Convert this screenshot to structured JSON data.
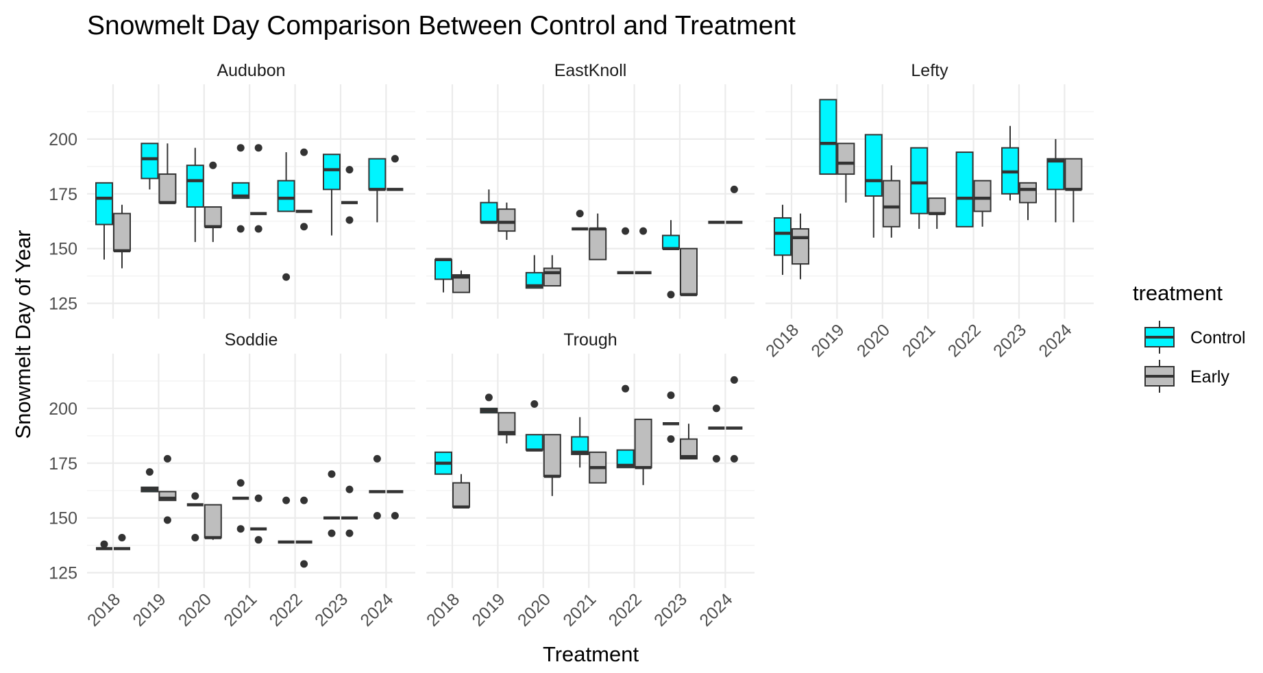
{
  "chart_data": {
    "type": "boxplot",
    "title": "Snowmelt Day Comparison Between Control and Treatment",
    "xlabel": "Treatment",
    "ylabel": "Snowmelt Day of Year",
    "ylim": [
      118,
      225
    ],
    "yticks": [
      125,
      150,
      175,
      200
    ],
    "categories": [
      "2018",
      "2019",
      "2020",
      "2021",
      "2022",
      "2023",
      "2024"
    ],
    "legend": {
      "title": "treatment",
      "position": "right",
      "entries": [
        {
          "name": "Control",
          "color": "#00f5ff"
        },
        {
          "name": "Early",
          "color": "#bebebe"
        }
      ]
    },
    "grid": true,
    "panels": [
      {
        "name": "Audubon",
        "series": [
          {
            "name": "Control",
            "boxes": [
              {
                "x": "2018",
                "min": 145,
                "q1": 161,
                "median": 173,
                "q3": 180,
                "max": 180,
                "outliers": []
              },
              {
                "x": "2019",
                "min": 177,
                "q1": 182,
                "median": 191,
                "q3": 198,
                "max": 198,
                "outliers": []
              },
              {
                "x": "2020",
                "min": 153,
                "q1": 169,
                "median": 181,
                "q3": 188,
                "max": 196,
                "outliers": []
              },
              {
                "x": "2021",
                "min": 173,
                "q1": 173,
                "median": 174,
                "q3": 180,
                "max": 180,
                "outliers": [
                  159,
                  196
                ]
              },
              {
                "x": "2022",
                "min": 167,
                "q1": 167,
                "median": 173,
                "q3": 181,
                "max": 194,
                "outliers": [
                  137
                ]
              },
              {
                "x": "2023",
                "min": 156,
                "q1": 177,
                "median": 186,
                "q3": 193,
                "max": 193,
                "outliers": []
              },
              {
                "x": "2024",
                "min": 162,
                "q1": 177,
                "median": 177,
                "q3": 191,
                "max": 191,
                "outliers": []
              }
            ]
          },
          {
            "name": "Early",
            "boxes": [
              {
                "x": "2018",
                "min": 141,
                "q1": 149,
                "median": 149,
                "q3": 166,
                "max": 170,
                "outliers": []
              },
              {
                "x": "2019",
                "min": 171,
                "q1": 171,
                "median": 171,
                "q3": 184,
                "max": 198,
                "outliers": []
              },
              {
                "x": "2020",
                "min": 153,
                "q1": 160,
                "median": 160,
                "q3": 169,
                "max": 169,
                "outliers": [
                  188
                ]
              },
              {
                "x": "2021",
                "min": 166,
                "q1": 166,
                "median": 166,
                "q3": 166,
                "max": 166,
                "outliers": [
                  159,
                  196
                ]
              },
              {
                "x": "2022",
                "min": 167,
                "q1": 167,
                "median": 167,
                "q3": 167,
                "max": 167,
                "outliers": [
                  160,
                  194
                ]
              },
              {
                "x": "2023",
                "min": 171,
                "q1": 171,
                "median": 171,
                "q3": 171,
                "max": 171,
                "outliers": [
                  163,
                  186
                ]
              },
              {
                "x": "2024",
                "min": 177,
                "q1": 177,
                "median": 177,
                "q3": 177,
                "max": 177,
                "outliers": [
                  191
                ]
              }
            ]
          }
        ]
      },
      {
        "name": "EastKnoll",
        "series": [
          {
            "name": "Control",
            "boxes": [
              {
                "x": "2018",
                "min": 130,
                "q1": 136,
                "median": 145,
                "q3": 145,
                "max": 145,
                "outliers": []
              },
              {
                "x": "2019",
                "min": 162,
                "q1": 162,
                "median": 162,
                "q3": 171,
                "max": 177,
                "outliers": []
              },
              {
                "x": "2020",
                "min": 132,
                "q1": 132,
                "median": 133,
                "q3": 139,
                "max": 147,
                "outliers": []
              },
              {
                "x": "2021",
                "min": 159,
                "q1": 159,
                "median": 159,
                "q3": 159,
                "max": 159,
                "outliers": [
                  166
                ]
              },
              {
                "x": "2022",
                "min": 139,
                "q1": 139,
                "median": 139,
                "q3": 139,
                "max": 139,
                "outliers": [
                  158
                ]
              },
              {
                "x": "2023",
                "min": 150,
                "q1": 150,
                "median": 150,
                "q3": 156,
                "max": 163,
                "outliers": [
                  129
                ]
              },
              {
                "x": "2024",
                "min": 162,
                "q1": 162,
                "median": 162,
                "q3": 162,
                "max": 162,
                "outliers": []
              }
            ]
          },
          {
            "name": "Early",
            "boxes": [
              {
                "x": "2018",
                "min": 130,
                "q1": 130,
                "median": 137,
                "q3": 138,
                "max": 140,
                "outliers": []
              },
              {
                "x": "2019",
                "min": 154,
                "q1": 158,
                "median": 162,
                "q3": 168,
                "max": 171,
                "outliers": []
              },
              {
                "x": "2020",
                "min": 133,
                "q1": 133,
                "median": 139,
                "q3": 141,
                "max": 147,
                "outliers": []
              },
              {
                "x": "2021",
                "min": 145,
                "q1": 145,
                "median": 159,
                "q3": 159,
                "max": 166,
                "outliers": []
              },
              {
                "x": "2022",
                "min": 139,
                "q1": 139,
                "median": 139,
                "q3": 139,
                "max": 139,
                "outliers": [
                  158
                ]
              },
              {
                "x": "2023",
                "min": 129,
                "q1": 129,
                "median": 129,
                "q3": 150,
                "max": 150,
                "outliers": []
              },
              {
                "x": "2024",
                "min": 162,
                "q1": 162,
                "median": 162,
                "q3": 162,
                "max": 162,
                "outliers": [
                  177
                ]
              }
            ]
          }
        ]
      },
      {
        "name": "Lefty",
        "series": [
          {
            "name": "Control",
            "boxes": [
              {
                "x": "2018",
                "min": 138,
                "q1": 147,
                "median": 157,
                "q3": 164,
                "max": 170,
                "outliers": []
              },
              {
                "x": "2019",
                "min": 184,
                "q1": 184,
                "median": 198,
                "q3": 218,
                "max": 218,
                "outliers": []
              },
              {
                "x": "2020",
                "min": 155,
                "q1": 174,
                "median": 181,
                "q3": 202,
                "max": 202,
                "outliers": []
              },
              {
                "x": "2021",
                "min": 159,
                "q1": 166,
                "median": 180,
                "q3": 196,
                "max": 196,
                "outliers": []
              },
              {
                "x": "2022",
                "min": 160,
                "q1": 160,
                "median": 173,
                "q3": 194,
                "max": 194,
                "outliers": []
              },
              {
                "x": "2023",
                "min": 172,
                "q1": 175,
                "median": 185,
                "q3": 196,
                "max": 206,
                "outliers": []
              },
              {
                "x": "2024",
                "min": 162,
                "q1": 177,
                "median": 190,
                "q3": 191,
                "max": 200,
                "outliers": []
              }
            ]
          },
          {
            "name": "Early",
            "boxes": [
              {
                "x": "2018",
                "min": 136,
                "q1": 143,
                "median": 155,
                "q3": 159,
                "max": 166,
                "outliers": []
              },
              {
                "x": "2019",
                "min": 171,
                "q1": 184,
                "median": 189,
                "q3": 198,
                "max": 198,
                "outliers": []
              },
              {
                "x": "2020",
                "min": 155,
                "q1": 160,
                "median": 169,
                "q3": 181,
                "max": 188,
                "outliers": []
              },
              {
                "x": "2021",
                "min": 159,
                "q1": 166,
                "median": 166,
                "q3": 173,
                "max": 173,
                "outliers": []
              },
              {
                "x": "2022",
                "min": 160,
                "q1": 167,
                "median": 173,
                "q3": 181,
                "max": 181,
                "outliers": []
              },
              {
                "x": "2023",
                "min": 163,
                "q1": 171,
                "median": 177,
                "q3": 180,
                "max": 180,
                "outliers": []
              },
              {
                "x": "2024",
                "min": 162,
                "q1": 177,
                "median": 177,
                "q3": 191,
                "max": 191,
                "outliers": []
              }
            ]
          }
        ]
      },
      {
        "name": "Soddie",
        "series": [
          {
            "name": "Control",
            "boxes": [
              {
                "x": "2018",
                "min": 136,
                "q1": 136,
                "median": 136,
                "q3": 136,
                "max": 136,
                "outliers": [
                  138
                ]
              },
              {
                "x": "2019",
                "min": 162,
                "q1": 162,
                "median": 163,
                "q3": 164,
                "max": 164,
                "outliers": [
                  171
                ]
              },
              {
                "x": "2020",
                "min": 156,
                "q1": 156,
                "median": 156,
                "q3": 156,
                "max": 156,
                "outliers": [
                  141,
                  160
                ]
              },
              {
                "x": "2021",
                "min": 159,
                "q1": 159,
                "median": 159,
                "q3": 159,
                "max": 159,
                "outliers": [
                  145,
                  166
                ]
              },
              {
                "x": "2022",
                "min": 139,
                "q1": 139,
                "median": 139,
                "q3": 139,
                "max": 139,
                "outliers": [
                  158
                ]
              },
              {
                "x": "2023",
                "min": 150,
                "q1": 150,
                "median": 150,
                "q3": 150,
                "max": 150,
                "outliers": [
                  143,
                  170
                ]
              },
              {
                "x": "2024",
                "min": 162,
                "q1": 162,
                "median": 162,
                "q3": 162,
                "max": 162,
                "outliers": [
                  151,
                  177
                ]
              }
            ]
          },
          {
            "name": "Early",
            "boxes": [
              {
                "x": "2018",
                "min": 136,
                "q1": 136,
                "median": 136,
                "q3": 136,
                "max": 136,
                "outliers": [
                  141
                ]
              },
              {
                "x": "2019",
                "min": 158,
                "q1": 158,
                "median": 159,
                "q3": 162,
                "max": 162,
                "outliers": [
                  149,
                  177
                ]
              },
              {
                "x": "2020",
                "min": 140,
                "q1": 141,
                "median": 141,
                "q3": 156,
                "max": 156,
                "outliers": []
              },
              {
                "x": "2021",
                "min": 145,
                "q1": 145,
                "median": 145,
                "q3": 145,
                "max": 145,
                "outliers": [
                  140,
                  159
                ]
              },
              {
                "x": "2022",
                "min": 139,
                "q1": 139,
                "median": 139,
                "q3": 139,
                "max": 139,
                "outliers": [
                  129,
                  158
                ]
              },
              {
                "x": "2023",
                "min": 150,
                "q1": 150,
                "median": 150,
                "q3": 150,
                "max": 150,
                "outliers": [
                  143,
                  163
                ]
              },
              {
                "x": "2024",
                "min": 162,
                "q1": 162,
                "median": 162,
                "q3": 162,
                "max": 162,
                "outliers": [
                  151
                ]
              }
            ]
          }
        ]
      },
      {
        "name": "Trough",
        "series": [
          {
            "name": "Control",
            "boxes": [
              {
                "x": "2018",
                "min": 170,
                "q1": 170,
                "median": 175,
                "q3": 180,
                "max": 180,
                "outliers": []
              },
              {
                "x": "2019",
                "min": 198,
                "q1": 198,
                "median": 199,
                "q3": 200,
                "max": 200,
                "outliers": [
                  205
                ]
              },
              {
                "x": "2020",
                "min": 181,
                "q1": 181,
                "median": 181,
                "q3": 188,
                "max": 188,
                "outliers": [
                  202
                ]
              },
              {
                "x": "2021",
                "min": 173,
                "q1": 179,
                "median": 180,
                "q3": 187,
                "max": 196,
                "outliers": []
              },
              {
                "x": "2022",
                "min": 173,
                "q1": 173,
                "median": 174,
                "q3": 181,
                "max": 181,
                "outliers": [
                  209
                ]
              },
              {
                "x": "2023",
                "min": 193,
                "q1": 193,
                "median": 193,
                "q3": 193,
                "max": 193,
                "outliers": [
                  186,
                  206
                ]
              },
              {
                "x": "2024",
                "min": 191,
                "q1": 191,
                "median": 191,
                "q3": 191,
                "max": 191,
                "outliers": [
                  177,
                  200
                ]
              }
            ]
          },
          {
            "name": "Early",
            "boxes": [
              {
                "x": "2018",
                "min": 155,
                "q1": 155,
                "median": 155,
                "q3": 166,
                "max": 170,
                "outliers": []
              },
              {
                "x": "2019",
                "min": 184,
                "q1": 188,
                "median": 189,
                "q3": 198,
                "max": 198,
                "outliers": []
              },
              {
                "x": "2020",
                "min": 160,
                "q1": 169,
                "median": 169,
                "q3": 188,
                "max": 188,
                "outliers": []
              },
              {
                "x": "2021",
                "min": 166,
                "q1": 166,
                "median": 173,
                "q3": 180,
                "max": 180,
                "outliers": []
              },
              {
                "x": "2022",
                "min": 165,
                "q1": 173,
                "median": 173,
                "q3": 195,
                "max": 195,
                "outliers": []
              },
              {
                "x": "2023",
                "min": 177,
                "q1": 177,
                "median": 178,
                "q3": 186,
                "max": 193,
                "outliers": []
              },
              {
                "x": "2024",
                "min": 191,
                "q1": 191,
                "median": 191,
                "q3": 191,
                "max": 191,
                "outliers": [
                  177,
                  213
                ]
              }
            ]
          }
        ]
      }
    ]
  }
}
